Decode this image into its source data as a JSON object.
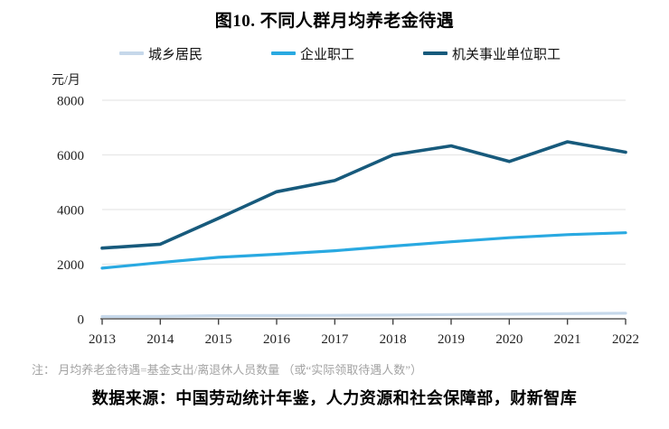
{
  "title": "图10. 不同人群月均养老金待遇",
  "unit_label": "元/月",
  "note": "注： 月均养老金待遇=基金支出/离退休人员数量 （或“实际领取待遇人数”）",
  "source": "数据来源：中国劳动统计年鉴，人力资源和社会保障部，财新智库",
  "colors": {
    "grid": "#e8e8e8",
    "axis": "#595959",
    "tick": "#444444"
  },
  "chart_data": {
    "type": "line",
    "title": "图10. 不同人群月均养老金待遇",
    "xlabel": "",
    "ylabel": "元/月",
    "ylim": [
      0,
      8000
    ],
    "y_ticks": [
      0,
      2000,
      4000,
      6000,
      8000
    ],
    "grid": "horizontal",
    "legend_position": "top",
    "categories": [
      "2013",
      "2014",
      "2015",
      "2016",
      "2017",
      "2018",
      "2019",
      "2020",
      "2021",
      "2022"
    ],
    "series": [
      {
        "name": "城乡居民",
        "color": "#c6d8ea",
        "values": [
          81,
          90,
          117,
          120,
          127,
          135,
          157,
          170,
          190,
          205
        ]
      },
      {
        "name": "企业职工",
        "color": "#29a9e1",
        "values": [
          1856,
          2061,
          2251,
          2362,
          2494,
          2660,
          2820,
          2970,
          3080,
          3150
        ]
      },
      {
        "name": "机关事业单位职工",
        "color": "#175a7c",
        "values": [
          2590,
          2730,
          3680,
          4650,
          5060,
          6000,
          6330,
          5760,
          6480,
          6100
        ]
      }
    ]
  }
}
